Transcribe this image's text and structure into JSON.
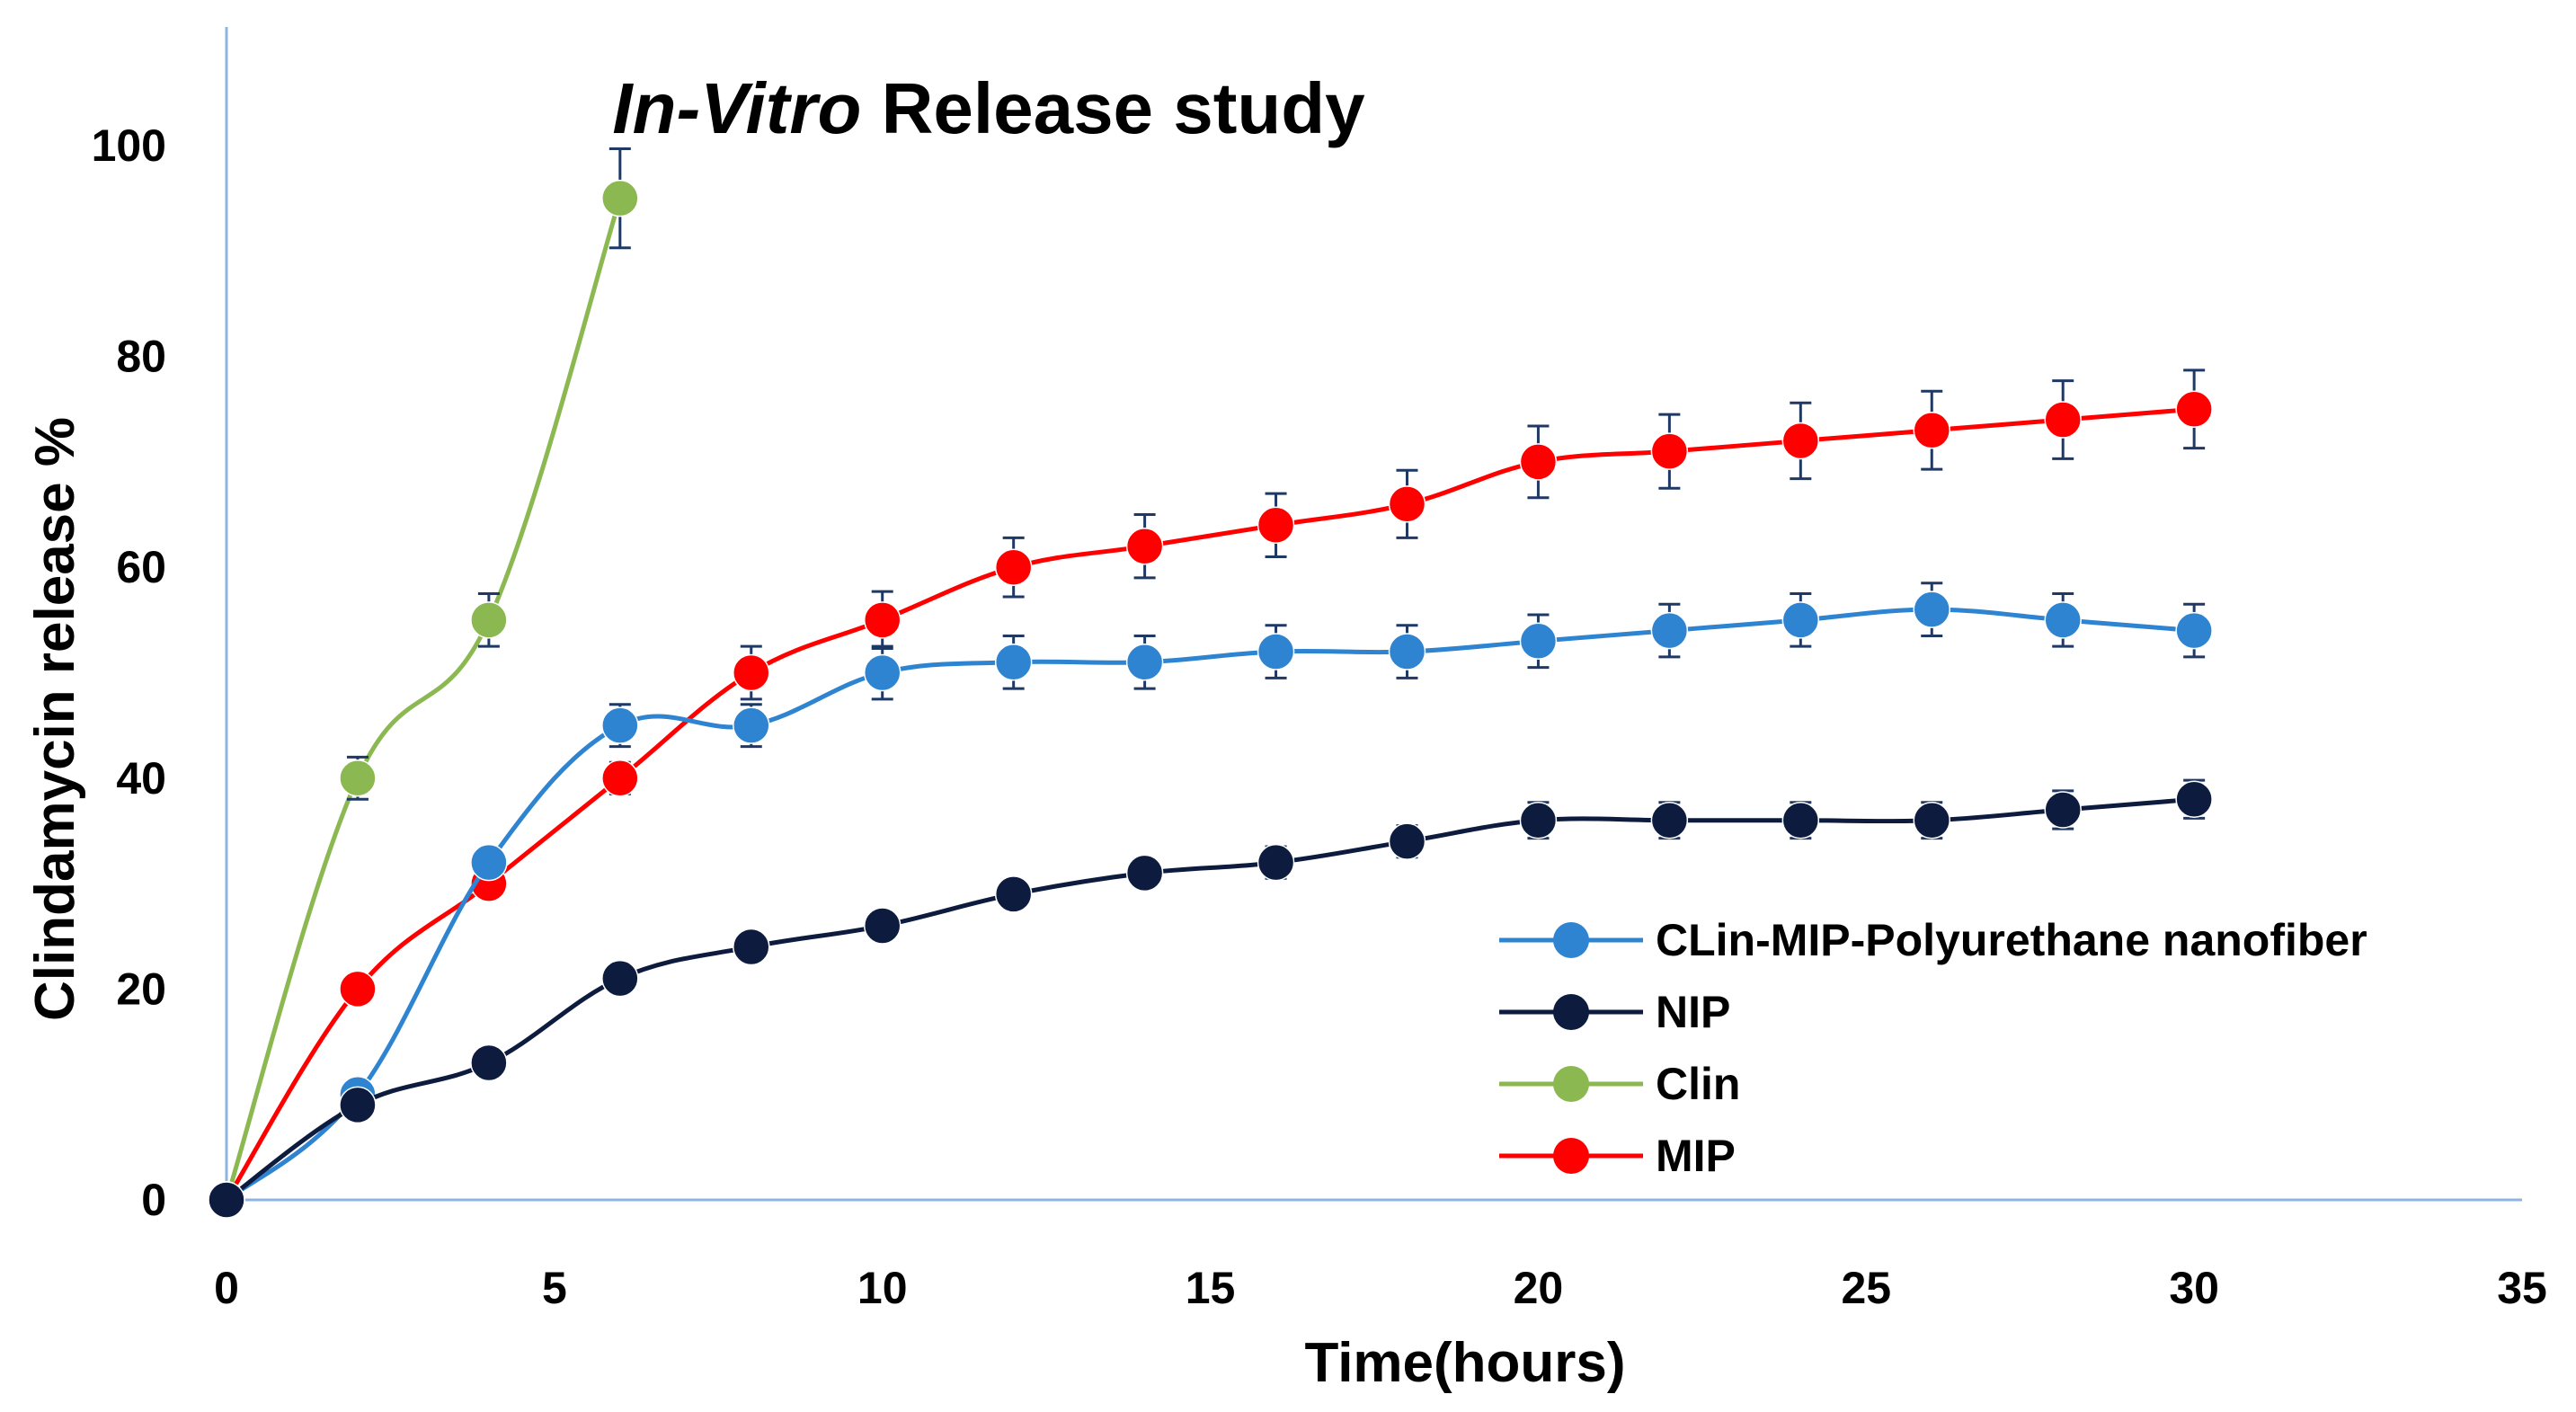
{
  "chart_data": {
    "type": "line",
    "title_italic": "In-Vitro",
    "title_rest": " Release study",
    "xlabel": "Time(hours)",
    "ylabel": "Clindamycin release %",
    "xlim": [
      0,
      35
    ],
    "ylim": [
      0,
      110
    ],
    "x_ticks": [
      0,
      5,
      10,
      15,
      20,
      25,
      30,
      35
    ],
    "y_ticks": [
      0,
      20,
      40,
      60,
      80,
      100
    ],
    "grid": false,
    "legend_position": "right",
    "series": [
      {
        "name": "CLin-MIP-Polyurethane nanofiber",
        "color": "#2E84D0",
        "x": [
          0,
          2,
          4,
          6,
          8,
          10,
          12,
          14,
          16,
          18,
          20,
          22,
          24,
          26,
          28,
          30
        ],
        "y": [
          0,
          10,
          32,
          45,
          45,
          50,
          51,
          51,
          52,
          52,
          53,
          54,
          55,
          56,
          55,
          54
        ],
        "err": [
          0,
          0,
          1.3,
          2,
          2,
          2.5,
          2.5,
          2.5,
          2.5,
          2.5,
          2.5,
          2.5,
          2.5,
          2.5,
          2.5,
          2.5
        ]
      },
      {
        "name": "NIP",
        "color": "#0D1B3E",
        "x": [
          0,
          2,
          4,
          6,
          8,
          10,
          12,
          14,
          16,
          18,
          20,
          22,
          24,
          26,
          28,
          30
        ],
        "y": [
          0,
          9,
          13,
          21,
          24,
          26,
          29,
          31,
          32,
          34,
          36,
          36,
          36,
          36,
          37,
          38
        ],
        "err": [
          0,
          0,
          0,
          0,
          0,
          0,
          0,
          0,
          1.5,
          1.5,
          1.7,
          1.7,
          1.7,
          1.7,
          1.8,
          1.8
        ]
      },
      {
        "name": "Clin",
        "color": "#8CB851",
        "x": [
          0,
          2,
          4,
          6
        ],
        "y": [
          0,
          40,
          55,
          95
        ],
        "err": [
          0,
          2,
          2.5,
          4.7
        ]
      },
      {
        "name": "MIP",
        "color": "#FF0000",
        "x": [
          0,
          2,
          4,
          6,
          8,
          10,
          12,
          14,
          16,
          18,
          20,
          22,
          24,
          26,
          28,
          30
        ],
        "y": [
          0,
          20,
          30,
          40,
          50,
          55,
          60,
          62,
          64,
          66,
          70,
          71,
          72,
          73,
          74,
          75
        ],
        "err": [
          0,
          0,
          0,
          1.5,
          2.5,
          2.7,
          2.8,
          3,
          3,
          3.2,
          3.4,
          3.5,
          3.6,
          3.7,
          3.7,
          3.7
        ]
      }
    ],
    "legend_order": [
      0,
      1,
      2,
      3
    ],
    "draw_order": [
      2,
      3,
      0,
      1
    ],
    "colors": {
      "axis": "#8EB4E3",
      "error_bar": "#1F3864",
      "text": "#000000"
    }
  }
}
